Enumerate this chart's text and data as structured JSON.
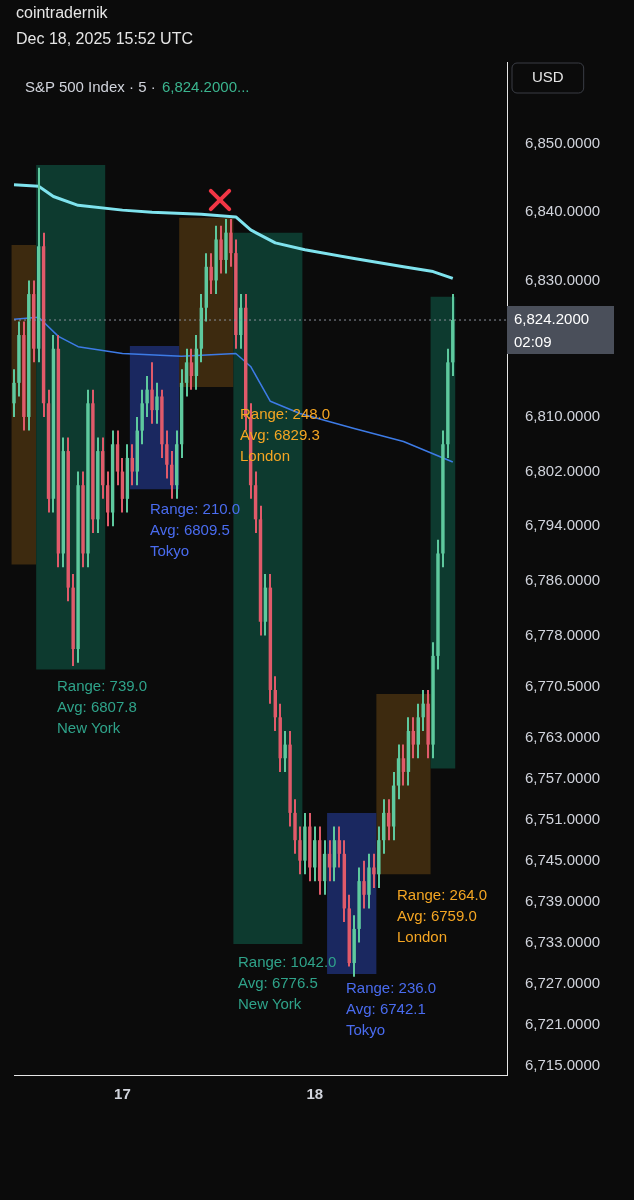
{
  "chart_data": {
    "type": "candlestick",
    "title": "S&P 500 Index · 5 ·",
    "subtitle": "6,824.2000...",
    "categories": [
      null,
      null,
      null,
      null,
      null,
      null,
      null,
      null,
      null,
      null,
      null,
      null,
      null,
      null,
      null,
      null,
      null,
      null,
      null,
      null,
      null,
      null,
      "17",
      null,
      null,
      null,
      null,
      null,
      null,
      null,
      null,
      null,
      null,
      null,
      null,
      null,
      null,
      null,
      null,
      null,
      null,
      null,
      null,
      null,
      null,
      null,
      null,
      null,
      null,
      null,
      null,
      null,
      null,
      null,
      null,
      null,
      null,
      null,
      null,
      null,
      null,
      "18",
      null,
      null,
      null,
      null,
      null,
      null,
      null,
      null,
      null,
      null,
      null,
      null,
      null,
      null,
      null,
      null,
      null,
      null,
      null,
      null,
      null,
      null,
      null,
      null,
      null,
      null,
      null,
      null,
      null,
      null,
      null,
      null,
      null,
      null,
      null,
      null,
      null,
      null,
      null
    ],
    "ohlc": [
      [
        6812,
        6817,
        6810,
        6815
      ],
      [
        6815,
        6824,
        6813,
        6822
      ],
      [
        6822,
        6824,
        6808,
        6810
      ],
      [
        6810,
        6830,
        6808,
        6828
      ],
      [
        6828,
        6830,
        6818,
        6820
      ],
      [
        6820,
        6846.5,
        6818,
        6835
      ],
      [
        6835,
        6837,
        6810,
        6812
      ],
      [
        6812,
        6814,
        6796,
        6798
      ],
      [
        6798,
        6822,
        6796,
        6820
      ],
      [
        6820,
        6822,
        6788,
        6790
      ],
      [
        6790,
        6807,
        6788,
        6805
      ],
      [
        6805,
        6807,
        6783,
        6785
      ],
      [
        6785,
        6787,
        6773.5,
        6776
      ],
      [
        6776,
        6802,
        6774,
        6800
      ],
      [
        6800,
        6802,
        6788,
        6790
      ],
      [
        6790,
        6814,
        6788,
        6812
      ],
      [
        6812,
        6814,
        6793,
        6795
      ],
      [
        6795,
        6807,
        6793,
        6805
      ],
      [
        6805,
        6807,
        6798,
        6800
      ],
      [
        6800,
        6802,
        6794,
        6796
      ],
      [
        6796,
        6808,
        6794,
        6806
      ],
      [
        6806,
        6808,
        6800,
        6802
      ],
      [
        6802,
        6804,
        6796,
        6798
      ],
      [
        6798,
        6806,
        6796,
        6804
      ],
      [
        6804,
        6806,
        6800,
        6802
      ],
      [
        6802,
        6810,
        6800,
        6808
      ],
      [
        6808,
        6814,
        6806,
        6812
      ],
      [
        6812,
        6816,
        6810,
        6814
      ],
      [
        6814,
        6818,
        6809,
        6811
      ],
      [
        6811,
        6815,
        6809,
        6813
      ],
      [
        6813,
        6814,
        6804,
        6806
      ],
      [
        6806,
        6808,
        6801,
        6803
      ],
      [
        6803,
        6805,
        6798,
        6800
      ],
      [
        6800,
        6808,
        6798,
        6806
      ],
      [
        6806,
        6817,
        6804,
        6815
      ],
      [
        6815,
        6820,
        6813,
        6818
      ],
      [
        6818,
        6820,
        6814,
        6816
      ],
      [
        6816,
        6822,
        6814,
        6820
      ],
      [
        6820,
        6828,
        6818,
        6826
      ],
      [
        6826,
        6834,
        6824,
        6832
      ],
      [
        6832,
        6834,
        6828,
        6830
      ],
      [
        6830,
        6838,
        6828,
        6836
      ],
      [
        6836,
        6838,
        6831,
        6833
      ],
      [
        6833,
        6839,
        6831,
        6837
      ],
      [
        6837,
        6839,
        6832,
        6834
      ],
      [
        6834,
        6836,
        6820,
        6822
      ],
      [
        6822,
        6828,
        6820,
        6826
      ],
      [
        6826,
        6828,
        6808,
        6810
      ],
      [
        6810,
        6812,
        6798,
        6800
      ],
      [
        6800,
        6802,
        6793,
        6795
      ],
      [
        6795,
        6797,
        6778,
        6780
      ],
      [
        6780,
        6787,
        6778,
        6785
      ],
      [
        6785,
        6787,
        6768,
        6770
      ],
      [
        6770,
        6772,
        6764,
        6766
      ],
      [
        6766,
        6768,
        6758,
        6760
      ],
      [
        6760,
        6764,
        6758,
        6762
      ],
      [
        6762,
        6764,
        6750,
        6752
      ],
      [
        6752,
        6754,
        6746,
        6748
      ],
      [
        6748,
        6750,
        6743,
        6745
      ],
      [
        6745,
        6752,
        6743,
        6750
      ],
      [
        6750,
        6752,
        6742,
        6744
      ],
      [
        6744,
        6750,
        6742,
        6748
      ],
      [
        6748,
        6750,
        6740,
        6742
      ],
      [
        6742,
        6748,
        6740,
        6746
      ],
      [
        6746,
        6748,
        6742,
        6744
      ],
      [
        6744,
        6750,
        6742,
        6748
      ],
      [
        6748,
        6750,
        6744,
        6746
      ],
      [
        6746,
        6748,
        6736,
        6738
      ],
      [
        6738,
        6740,
        6729.5,
        6730
      ],
      [
        6730,
        6737,
        6728,
        6735
      ],
      [
        6735,
        6744,
        6733,
        6742
      ],
      [
        6742,
        6745,
        6738,
        6740
      ],
      [
        6740,
        6746,
        6738,
        6744
      ],
      [
        6744,
        6746,
        6741,
        6743
      ],
      [
        6743,
        6750,
        6741,
        6748
      ],
      [
        6748,
        6754,
        6746,
        6752
      ],
      [
        6752,
        6754,
        6748,
        6750
      ],
      [
        6750,
        6758,
        6748,
        6756
      ],
      [
        6756,
        6762,
        6754,
        6760
      ],
      [
        6760,
        6762,
        6756,
        6758
      ],
      [
        6758,
        6766,
        6756,
        6764
      ],
      [
        6764,
        6766,
        6760,
        6762
      ],
      [
        6762,
        6768,
        6760,
        6766
      ],
      [
        6766,
        6770,
        6764,
        6768
      ],
      [
        6768,
        6770,
        6760,
        6762
      ],
      [
        6762,
        6777,
        6760,
        6775
      ],
      [
        6775,
        6792,
        6773,
        6790
      ],
      [
        6790,
        6808,
        6788,
        6806
      ],
      [
        6806,
        6820,
        6804,
        6818
      ],
      [
        6818,
        6828,
        6816,
        6824.2
      ],
      null,
      null,
      null,
      null,
      null,
      null,
      null,
      null,
      null,
      null,
      null
    ],
    "series": [
      {
        "type": "line",
        "color": "#7fe3ee",
        "values": [
          6844,
          null,
          null,
          null,
          null,
          6843.8,
          null,
          null,
          6842.3,
          null,
          null,
          null,
          null,
          6841,
          null,
          null,
          null,
          null,
          null,
          null,
          null,
          null,
          6840.3,
          null,
          null,
          null,
          null,
          null,
          6840,
          null,
          null,
          null,
          null,
          null,
          null,
          null,
          null,
          null,
          6839.7,
          null,
          null,
          null,
          null,
          null,
          null,
          6839.3,
          null,
          null,
          6837.4,
          null,
          null,
          null,
          null,
          6835.5,
          null,
          null,
          null,
          null,
          null,
          6834.5,
          null,
          null,
          null,
          null,
          null,
          null,
          null,
          null,
          null,
          6833.2,
          null,
          null,
          null,
          null,
          null,
          null,
          null,
          null,
          null,
          6832,
          null,
          null,
          null,
          null,
          null,
          6831.3,
          null,
          null,
          null,
          6830.3,
          null,
          null,
          null,
          null,
          null,
          null,
          null,
          null,
          null,
          null,
          null
        ]
      },
      {
        "type": "line",
        "color": "#3d7be6",
        "values": [
          6824.3,
          null,
          null,
          null,
          null,
          6824.6,
          null,
          null,
          null,
          6821.8,
          null,
          null,
          null,
          6820.3,
          null,
          null,
          null,
          null,
          null,
          null,
          null,
          null,
          6819.3,
          null,
          null,
          null,
          null,
          null,
          null,
          null,
          null,
          null,
          null,
          null,
          6818.9,
          null,
          null,
          null,
          null,
          null,
          null,
          null,
          null,
          null,
          null,
          6819.3,
          null,
          null,
          6817.4,
          null,
          null,
          null,
          6812.3,
          null,
          null,
          null,
          null,
          null,
          6810.5,
          null,
          null,
          null,
          null,
          null,
          null,
          null,
          null,
          null,
          null,
          6808.3,
          null,
          null,
          null,
          null,
          null,
          null,
          null,
          null,
          null,
          6806.4,
          null,
          null,
          null,
          null,
          null,
          null,
          null,
          null,
          null,
          6803.4,
          null,
          null,
          null,
          null,
          null,
          null,
          null,
          null,
          null,
          null,
          null
        ]
      }
    ],
    "bands": [
      {
        "axis": "y",
        "from": 6788.4,
        "to": 6835.2,
        "color": "#3d2a0f"
      },
      {
        "axis": "y",
        "from": 6814.4,
        "to": 6839.2,
        "color": "#3d2a0f"
      },
      {
        "axis": "y",
        "from": 6743,
        "to": 6769.4,
        "color": "#3d2a0f"
      },
      {
        "axis": "y",
        "from": 6773,
        "to": 6846.9,
        "color": "#0d3a2f"
      },
      {
        "axis": "y",
        "from": 6732.8,
        "to": 6837,
        "color": "#0d3a2f"
      },
      {
        "axis": "y",
        "from": 6758.5,
        "to": 6827.6,
        "color": "#0d3a2f"
      },
      {
        "axis": "y",
        "from": 6799.4,
        "to": 6820.4,
        "color": "#1a2860"
      },
      {
        "axis": "y",
        "from": 6728.4,
        "to": 6752,
        "color": "#1a2860"
      }
    ],
    "ylim": [
      6713.6,
      6862
    ],
    "yticks": [
      {
        "value": 6850,
        "label": "6,850.0000"
      },
      {
        "value": 6840,
        "label": "6,840.0000"
      },
      {
        "value": 6830,
        "label": "6,830.0000"
      },
      {
        "value": 6810,
        "label": "6,810.0000"
      },
      {
        "value": 6802,
        "label": "6,802.0000"
      },
      {
        "value": 6794,
        "label": "6,794.0000"
      },
      {
        "value": 6786,
        "label": "6,786.0000"
      },
      {
        "value": 6778,
        "label": "6,778.0000"
      },
      {
        "value": 6770.5,
        "label": "6,770.5000"
      },
      {
        "value": 6763,
        "label": "6,763.0000"
      },
      {
        "value": 6757,
        "label": "6,757.0000"
      },
      {
        "value": 6751,
        "label": "6,751.0000"
      },
      {
        "value": 6745,
        "label": "6,745.0000"
      },
      {
        "value": 6739,
        "label": "6,739.0000"
      },
      {
        "value": 6733,
        "label": "6,733.0000"
      },
      {
        "value": 6727,
        "label": "6,727.0000"
      },
      {
        "value": 6721,
        "label": "6,721.0000"
      },
      {
        "value": 6715,
        "label": "6,715.0000"
      }
    ],
    "ref_lines": [
      {
        "axis": "y",
        "value": 6824.2,
        "label": "6,824.2000\n02:09",
        "color": "#8a8f9a",
        "line_style": "dotted"
      }
    ],
    "marker": "none",
    "annotations": [
      "Range: 739.0\nAvg: 6807.8\nNew York",
      "Range: 210.0\nAvg: 6809.5\nTokyo",
      "Range: 248.0\nAvg: 6829.3\nLondon",
      "Range: 1042.0\nAvg: 6776.5\nNew York",
      "Range: 236.0\nAvg: 6742.1\nTokyo",
      "Range: 264.0\nAvg: 6759.0\nLondon",
      "cointradernik\nDec 18, 2025 15:52 UTC",
      "USD"
    ]
  }
}
